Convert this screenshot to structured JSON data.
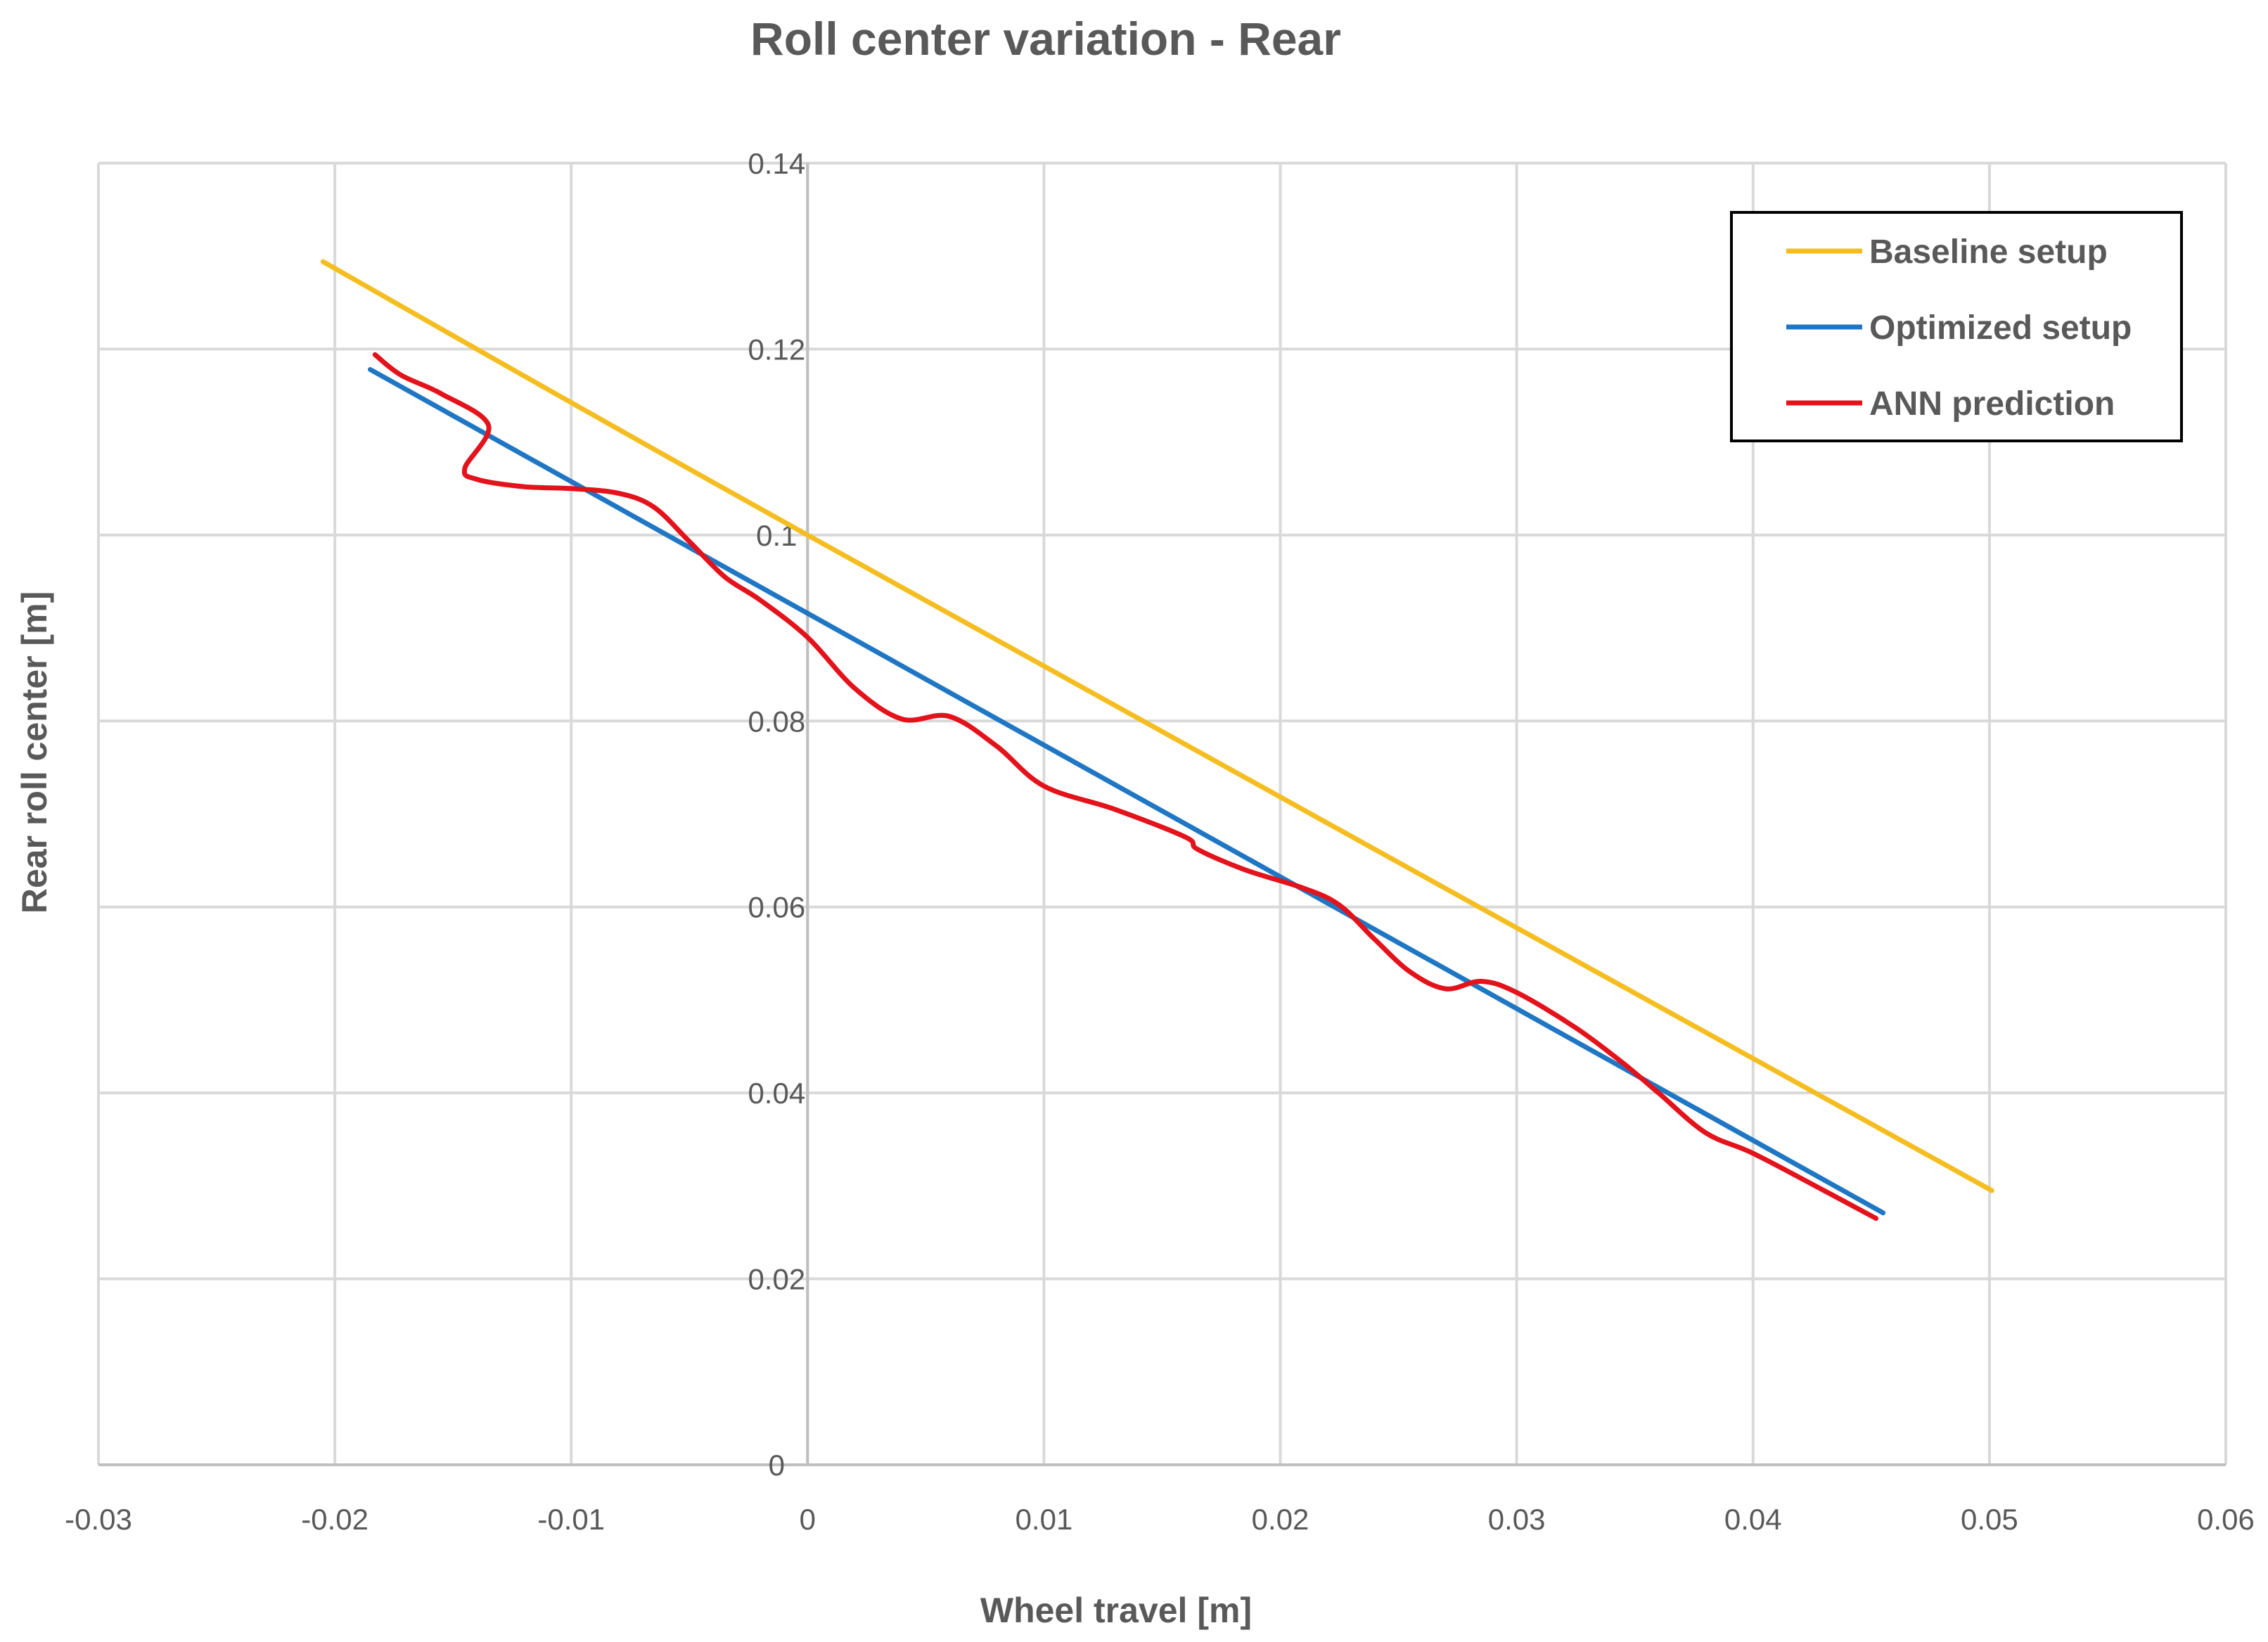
{
  "chart_data": {
    "type": "line",
    "title": "Roll center variation - Rear",
    "xlabel": "Wheel travel [m]",
    "ylabel": "Rear roll center [m]",
    "xlim": [
      -0.03,
      0.06
    ],
    "ylim": [
      0,
      0.14
    ],
    "x_ticks": [
      -0.03,
      -0.02,
      -0.01,
      0,
      0.01,
      0.02,
      0.03,
      0.04,
      0.05,
      0.06
    ],
    "x_tick_labels": [
      "-0.03",
      "-0.02",
      "-0.01",
      "0",
      "0.01",
      "0.02",
      "0.03",
      "0.04",
      "0.05",
      "0.06"
    ],
    "y_ticks": [
      0,
      0.02,
      0.04,
      0.06,
      0.08,
      0.1,
      0.12,
      0.14
    ],
    "y_tick_labels": [
      "0",
      "0.02",
      "0.04",
      "0.06",
      "0.08",
      "0.1",
      "0.12",
      "0.14"
    ],
    "grid": true,
    "legend_position": "top-right",
    "series": [
      {
        "name": "Baseline setup",
        "color": "#f5bd1f",
        "x": [
          -0.0205,
          0.0,
          0.0501
        ],
        "y": [
          0.1294,
          0.1,
          0.0295
        ]
      },
      {
        "name": "Optimized setup",
        "color": "#1f77c4",
        "x": [
          -0.0185,
          0.0455
        ],
        "y": [
          0.1178,
          0.0271
        ]
      },
      {
        "name": "ANN prediction",
        "color": "#e3121b",
        "x": [
          -0.0183,
          -0.0172,
          -0.0155,
          -0.0135,
          -0.0145,
          -0.014,
          -0.012,
          -0.01,
          -0.008,
          -0.0065,
          -0.005,
          -0.0035,
          -0.002,
          0.0,
          0.002,
          0.004,
          0.006,
          0.008,
          0.01,
          0.013,
          0.016,
          0.0165,
          0.0185,
          0.021,
          0.0225,
          0.024,
          0.0255,
          0.027,
          0.0285,
          0.03,
          0.0325,
          0.0345,
          0.036,
          0.038,
          0.04,
          0.043,
          0.0452
        ],
        "y": [
          0.1194,
          0.1172,
          0.1152,
          0.1118,
          0.1072,
          0.106,
          0.1052,
          0.105,
          0.1045,
          0.103,
          0.0993,
          0.0955,
          0.093,
          0.089,
          0.0835,
          0.0802,
          0.0805,
          0.0773,
          0.073,
          0.0705,
          0.0675,
          0.0662,
          0.064,
          0.062,
          0.0602,
          0.0565,
          0.053,
          0.0512,
          0.052,
          0.0508,
          0.047,
          0.0432,
          0.04,
          0.0357,
          0.0335,
          0.0295,
          0.0265
        ]
      }
    ]
  }
}
